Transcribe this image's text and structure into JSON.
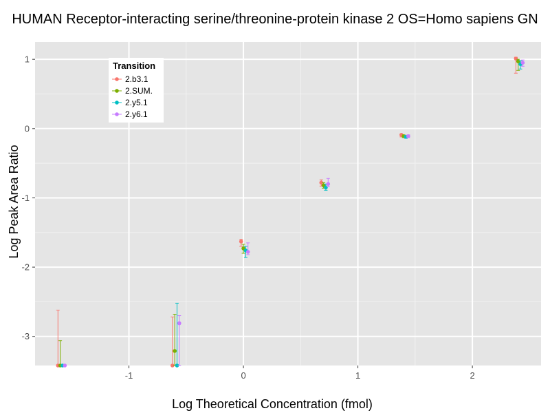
{
  "chart_data": {
    "type": "scatter",
    "title": "HUMAN Receptor-interacting serine/threonine-protein kinase 2 OS=Homo sapiens GN",
    "xlabel": "Log Theoretical Concentration (fmol)",
    "ylabel": "Log Peak Area Ratio",
    "xlim": [
      -1.82,
      2.6
    ],
    "ylim": [
      -3.42,
      1.25
    ],
    "xticks": [
      -1,
      0,
      1,
      2
    ],
    "yticks": [
      -3,
      -2,
      -1,
      0,
      1
    ],
    "xtick_labels": [
      "-1",
      "0",
      "1",
      "2"
    ],
    "ytick_labels": [
      "-3",
      "-2",
      "-1",
      "0",
      "1"
    ],
    "grid": true,
    "legend": {
      "title": "Transition",
      "position": "top-left"
    },
    "series": [
      {
        "name": "2.b3.1",
        "color": "#F8766D",
        "points": [
          {
            "x": -1.62,
            "y": -3.42,
            "lo": -3.42,
            "hi": -2.62
          },
          {
            "x": -0.62,
            "y": -3.42,
            "lo": -3.42,
            "hi": -2.72
          },
          {
            "x": -0.02,
            "y": -1.63,
            "lo": -1.7,
            "hi": -1.6
          },
          {
            "x": 0.68,
            "y": -0.78,
            "lo": -0.83,
            "hi": -0.74
          },
          {
            "x": 1.38,
            "y": -0.09,
            "lo": -0.12,
            "hi": -0.08
          },
          {
            "x": 2.38,
            "y": 1.01,
            "lo": 0.8,
            "hi": 1.03
          }
        ]
      },
      {
        "name": "2.SUM.",
        "color": "#7CAE00",
        "points": [
          {
            "x": -1.6,
            "y": -3.42,
            "lo": -3.42,
            "hi": -3.06
          },
          {
            "x": -0.6,
            "y": -3.21,
            "lo": -3.42,
            "hi": -2.68
          },
          {
            "x": -0.0,
            "y": -1.73,
            "lo": -1.8,
            "hi": -1.67
          },
          {
            "x": 0.7,
            "y": -0.82,
            "lo": -0.86,
            "hi": -0.78
          },
          {
            "x": 1.4,
            "y": -0.11,
            "lo": -0.13,
            "hi": -0.09
          },
          {
            "x": 2.4,
            "y": 0.97,
            "lo": 0.84,
            "hi": 1.0
          }
        ]
      },
      {
        "name": "2.y5.1",
        "color": "#00BFC4",
        "points": [
          {
            "x": -1.58,
            "y": -3.42,
            "lo": -3.42,
            "hi": -3.42
          },
          {
            "x": -0.58,
            "y": -3.42,
            "lo": -3.42,
            "hi": -2.52
          },
          {
            "x": 0.02,
            "y": -1.76,
            "lo": -1.86,
            "hi": -1.7
          },
          {
            "x": 0.72,
            "y": -0.85,
            "lo": -0.89,
            "hi": -0.8
          },
          {
            "x": 1.42,
            "y": -0.12,
            "lo": -0.14,
            "hi": -0.1
          },
          {
            "x": 2.42,
            "y": 0.93,
            "lo": 0.86,
            "hi": 0.98
          }
        ]
      },
      {
        "name": "2.y6.1",
        "color": "#C77CFF",
        "points": [
          {
            "x": -1.56,
            "y": -3.42,
            "lo": -3.42,
            "hi": -3.42
          },
          {
            "x": -0.56,
            "y": -2.81,
            "lo": -3.42,
            "hi": -2.7
          },
          {
            "x": 0.04,
            "y": -1.78,
            "lo": -1.82,
            "hi": -1.65
          },
          {
            "x": 0.74,
            "y": -0.8,
            "lo": -0.84,
            "hi": -0.72
          },
          {
            "x": 1.44,
            "y": -0.11,
            "lo": -0.13,
            "hi": -0.09
          },
          {
            "x": 2.44,
            "y": 0.95,
            "lo": 0.9,
            "hi": 0.99
          }
        ]
      }
    ]
  }
}
